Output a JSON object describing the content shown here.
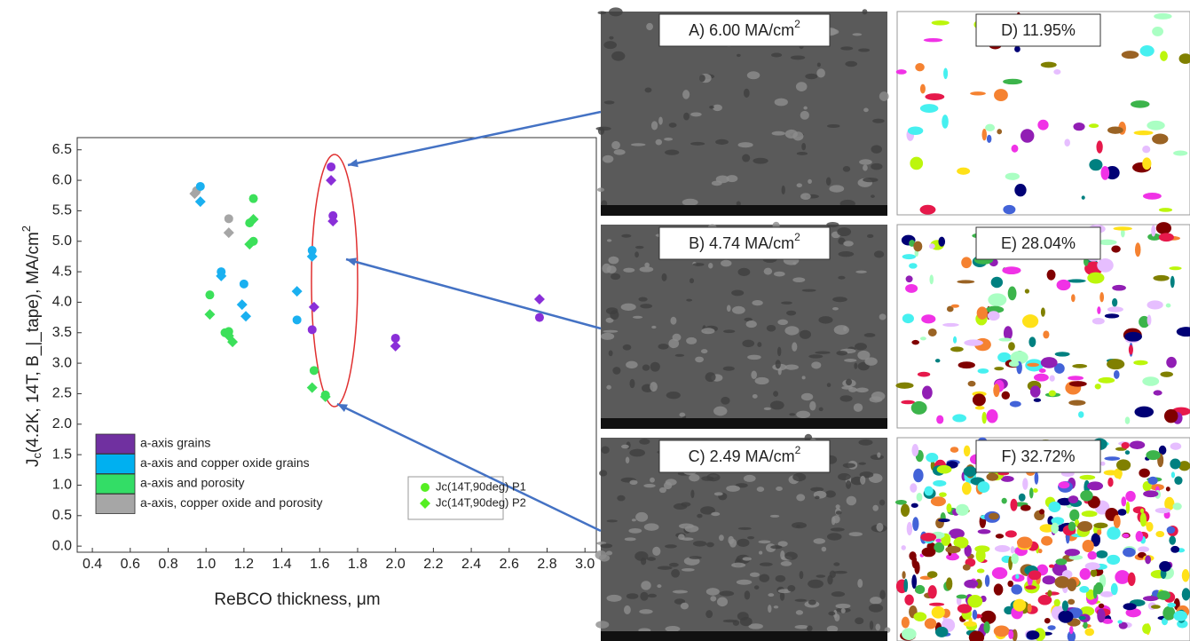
{
  "chart_data": {
    "type": "scatter",
    "xlabel": "ReBCO thickness, μm",
    "ylabel": {
      "main": "J",
      "sub": "c",
      "rest": "(4.2K, 14T, B_|_tape), MA/cm",
      "sup": "2"
    },
    "xlim": [
      0.32,
      3.06
    ],
    "ylim": [
      -0.1,
      6.7
    ],
    "xticks": [
      0.4,
      0.6,
      0.8,
      {
        "value": 1.0,
        "label": "1.0"
      },
      1.2,
      1.4,
      1.6,
      1.8,
      {
        "value": 2.0,
        "label": "2.0"
      },
      2.2,
      2.4,
      2.6,
      2.8,
      {
        "value": 3.0,
        "label": "3.0"
      }
    ],
    "yticks": [
      {
        "value": 0,
        "label": "0.0"
      },
      0.5,
      {
        "value": 1,
        "label": "1.0"
      },
      1.5,
      {
        "value": 2,
        "label": "2.0"
      },
      2.5,
      {
        "value": 3,
        "label": "3.0"
      },
      3.5,
      {
        "value": 4,
        "label": "4.0"
      },
      4.5,
      {
        "value": 5,
        "label": "5.0"
      },
      5.5,
      {
        "value": 6,
        "label": "6.0"
      },
      6.5
    ],
    "groups": [
      {
        "name": "a-axis grains",
        "color": "#7030a0"
      },
      {
        "name": "a-axis and copper oxide grains",
        "color": "#00b0f0"
      },
      {
        "name": "a-axis and porosity",
        "color": "#33dd66"
      },
      {
        "name": "a-axis, copper oxide and porosity",
        "color": "#a6a6a6"
      }
    ],
    "series": [
      {
        "name": "Jc(14T,90deg) P1",
        "marker": "circle",
        "color": "#55ee22",
        "x": [
          0.95,
          1.12,
          0.97,
          1.08,
          1.2,
          1.48,
          1.56,
          1.02,
          1.1,
          1.12,
          1.25,
          1.23,
          1.25,
          1.57,
          1.63,
          1.66,
          1.67,
          1.56,
          2.0,
          2.76
        ],
        "values": [
          5.83,
          5.37,
          5.9,
          4.5,
          4.3,
          3.71,
          4.85,
          4.12,
          3.5,
          3.52,
          5.7,
          5.3,
          5.0,
          2.88,
          2.48,
          6.22,
          5.42,
          3.55,
          3.41,
          3.75
        ],
        "colors": [
          "#a6a6a6",
          "#a6a6a6",
          "#1ab0f0",
          "#1ab0f0",
          "#1ab0f0",
          "#1ab0f0",
          "#1ab0f0",
          "#3ce05a",
          "#3ce05a",
          "#3ce05a",
          "#3ce05a",
          "#3ce05a",
          "#3ce05a",
          "#3ce05a",
          "#3ce05a",
          "#8a2fd8",
          "#8a2fd8",
          "#8a2fd8",
          "#8a2fd8",
          "#8a2fd8"
        ]
      },
      {
        "name": "Jc(14T,90deg) P2",
        "marker": "diamond",
        "color": "#55ee22",
        "x": [
          0.94,
          1.12,
          0.97,
          1.08,
          1.19,
          1.21,
          1.48,
          1.56,
          1.02,
          1.12,
          1.14,
          1.25,
          1.23,
          1.56,
          1.63,
          1.66,
          1.67,
          1.57,
          2.0,
          2.76
        ],
        "values": [
          5.78,
          5.14,
          5.65,
          4.43,
          3.96,
          3.77,
          4.18,
          4.75,
          3.8,
          3.45,
          3.35,
          5.36,
          4.95,
          2.6,
          2.45,
          6.0,
          5.33,
          3.92,
          3.28,
          4.05
        ],
        "colors": [
          "#a6a6a6",
          "#a6a6a6",
          "#1ab0f0",
          "#1ab0f0",
          "#1ab0f0",
          "#1ab0f0",
          "#1ab0f0",
          "#1ab0f0",
          "#3ce05a",
          "#3ce05a",
          "#3ce05a",
          "#3ce05a",
          "#3ce05a",
          "#3ce05a",
          "#3ce05a",
          "#8a2fd8",
          "#8a2fd8",
          "#8a2fd8",
          "#8a2fd8",
          "#8a2fd8"
        ]
      }
    ]
  },
  "panels": [
    {
      "label": "A) 6.00 MA/cm",
      "sup": "2"
    },
    {
      "label": "B) 4.74 MA/cm",
      "sup": "2"
    },
    {
      "label": "C) 2.49 MA/cm",
      "sup": "2"
    },
    {
      "label": "D) 11.95%"
    },
    {
      "label": "E) 28.04%"
    },
    {
      "label": "F) 32.72%"
    }
  ]
}
